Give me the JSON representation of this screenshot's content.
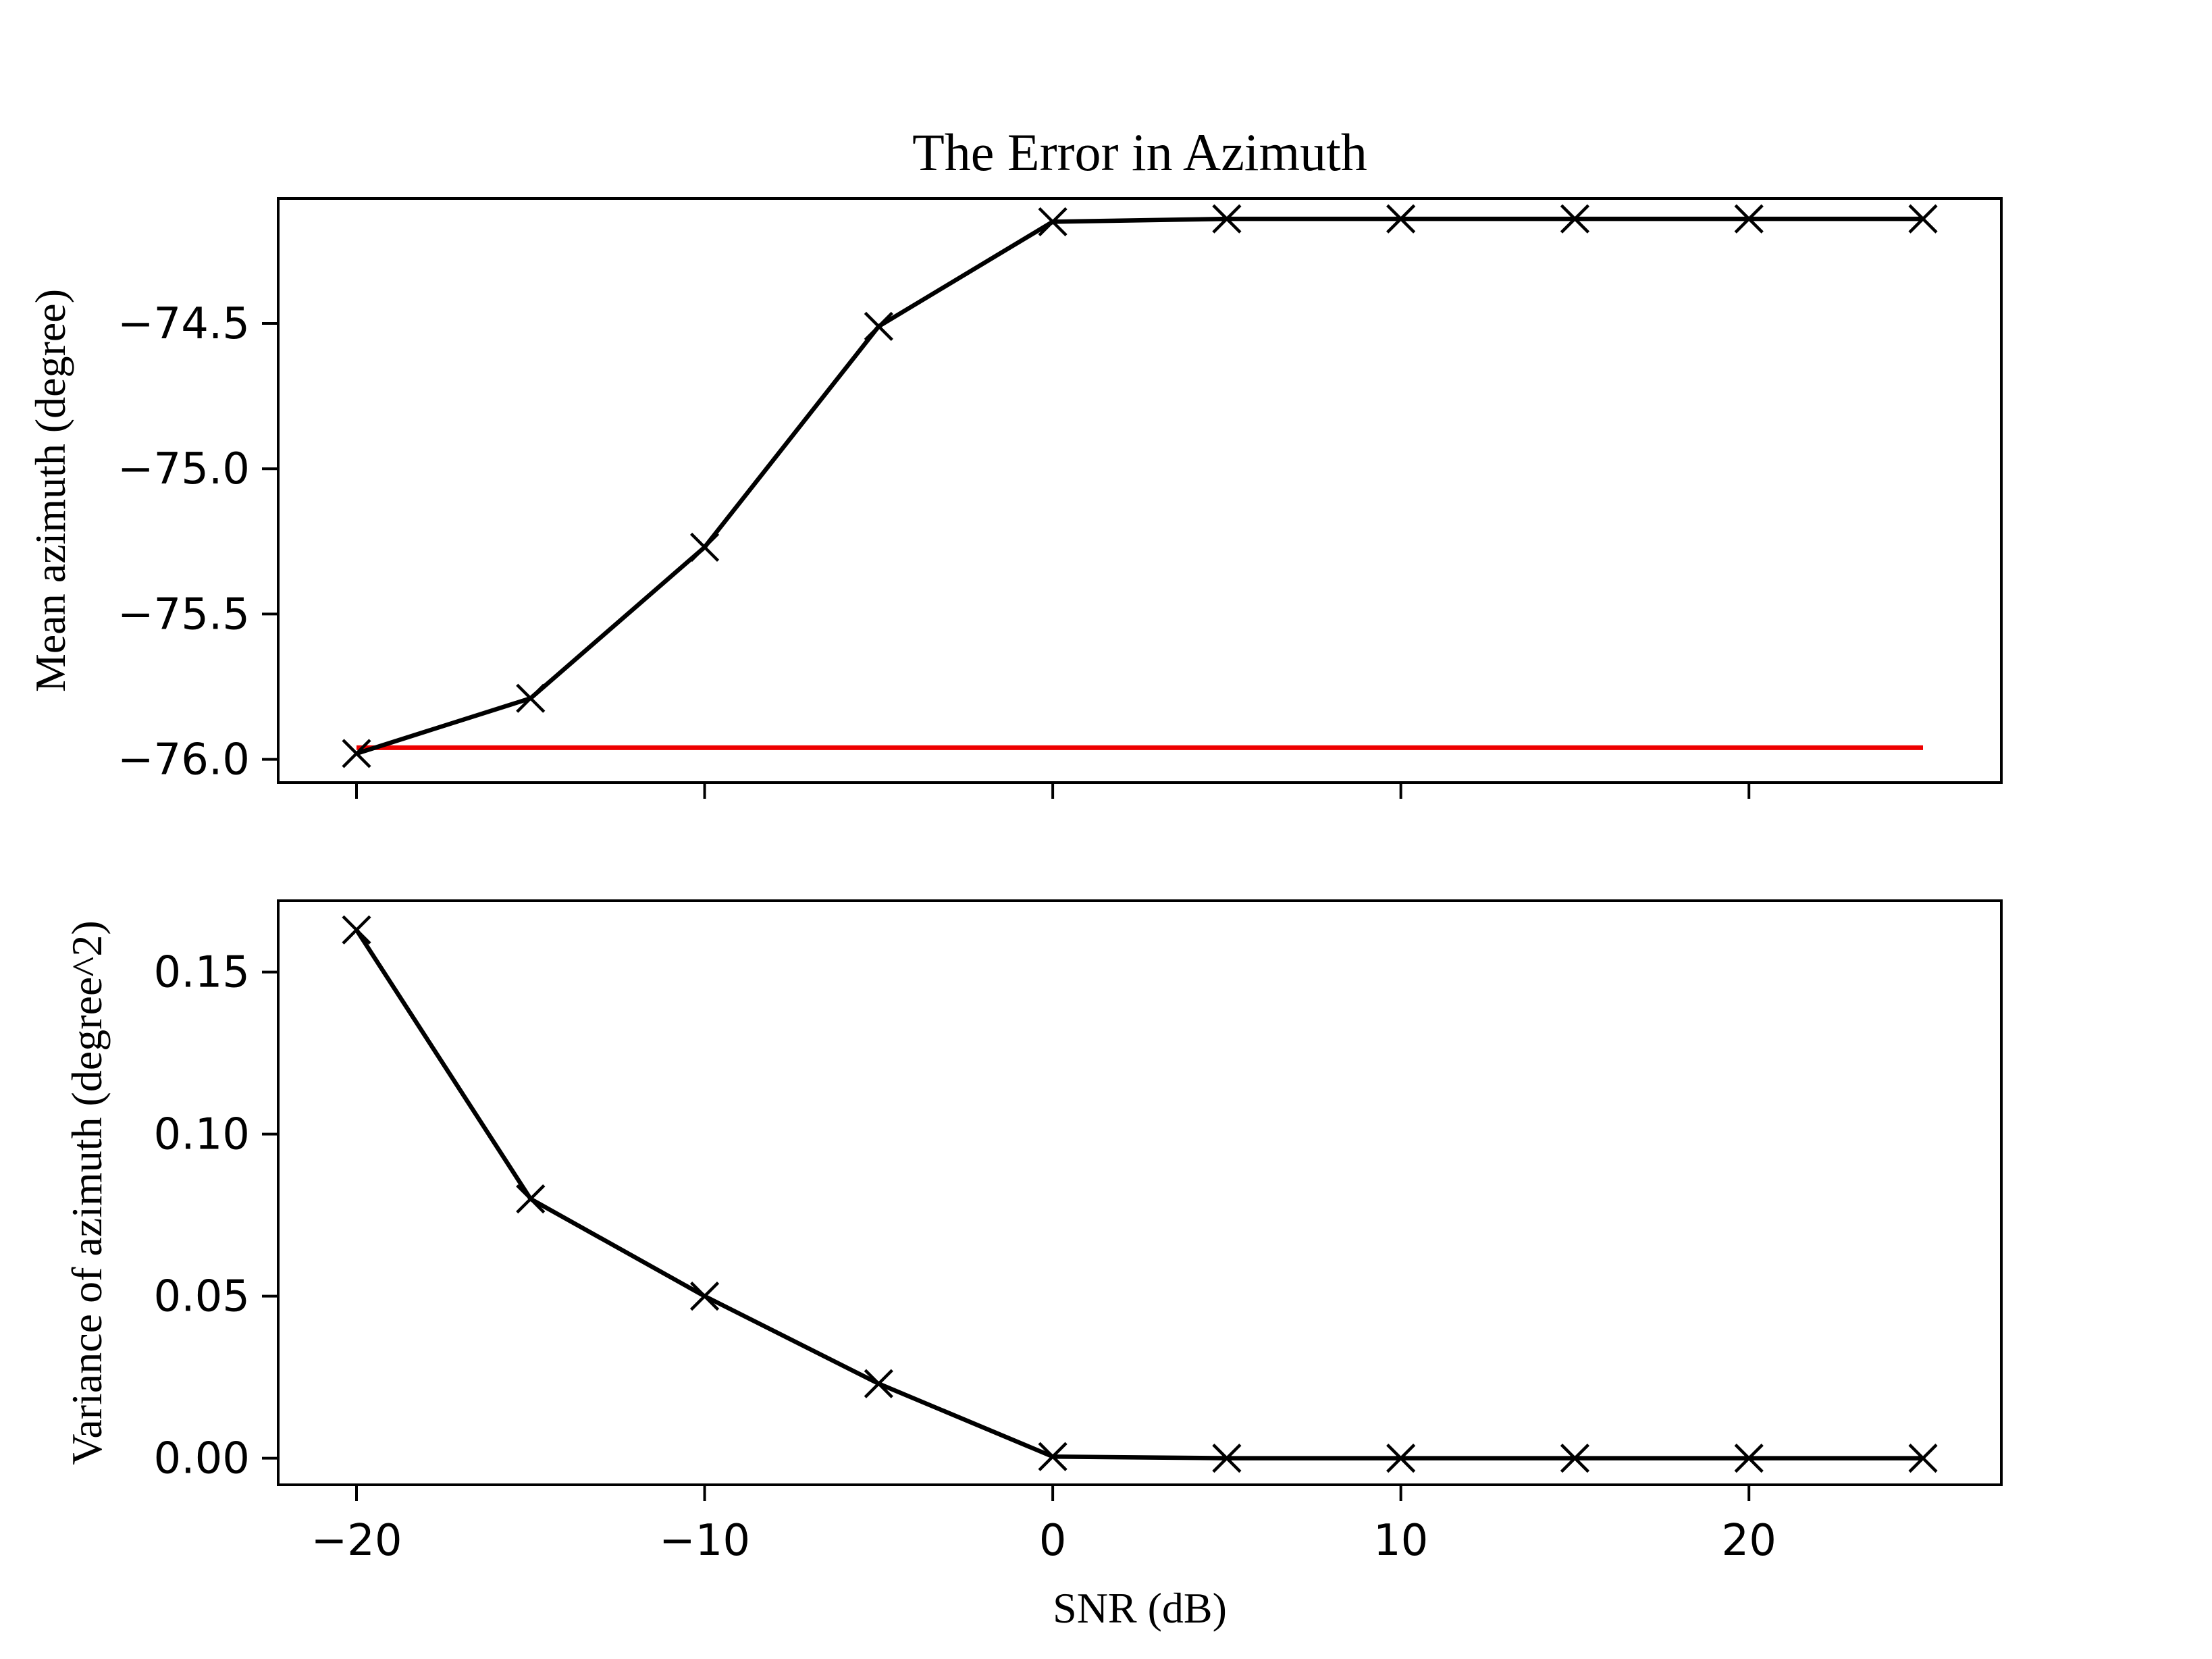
{
  "chart_data": {
    "type": "line",
    "title": "The Error in Azimuth",
    "xlabel": "SNR (dB)",
    "x": [
      -20,
      -15,
      -10,
      -5,
      0,
      5,
      10,
      15,
      20,
      25
    ],
    "xlim": [
      -22.25,
      27.25
    ],
    "xticks": [
      -20,
      -10,
      0,
      10,
      20
    ],
    "xtick_labels": [
      "−20",
      "−10",
      "0",
      "10",
      "20"
    ],
    "colors": {
      "series": "#000000",
      "reference": "#ee0000"
    },
    "subplots": [
      {
        "ylabel": "Mean azimuth (degree)",
        "ylim": [
          -76.08,
          -74.07
        ],
        "yticks": [
          -76.0,
          -75.5,
          -75.0,
          -74.5
        ],
        "ytick_labels": [
          "−76.0",
          "−75.5",
          "−75.0",
          "−74.5"
        ],
        "series": [
          {
            "values": [
              -75.98,
              -75.79,
              -75.27,
              -74.51,
              -74.15,
              -74.14,
              -74.14,
              -74.14,
              -74.14,
              -74.14
            ],
            "marker": "x",
            "color": "#000000"
          }
        ],
        "reference_line": {
          "y": -75.96,
          "x_range": [
            -20,
            25
          ],
          "color": "#ee0000"
        }
      },
      {
        "ylabel": "Variance of azimuth (degree^2)",
        "ylim": [
          -0.0082,
          0.172
        ],
        "yticks": [
          0.0,
          0.05,
          0.1,
          0.15
        ],
        "ytick_labels": [
          "0.00",
          "0.05",
          "0.10",
          "0.15"
        ],
        "series": [
          {
            "values": [
              0.163,
              0.08,
              0.05,
              0.023,
              0.0005,
              0.0,
              0.0,
              0.0,
              0.0,
              0.0
            ],
            "marker": "x",
            "color": "#000000"
          }
        ]
      }
    ]
  }
}
